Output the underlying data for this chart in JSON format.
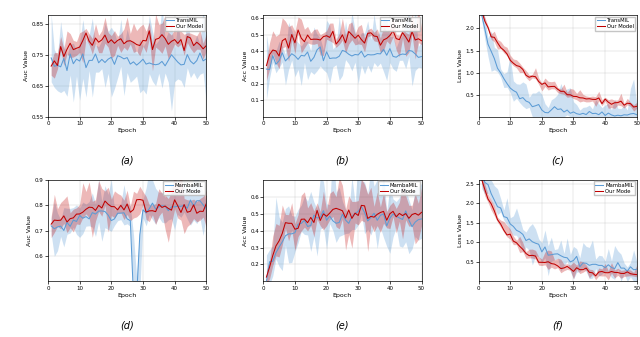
{
  "fig_width": 6.4,
  "fig_height": 3.37,
  "dpi": 100,
  "n_epochs": 50,
  "blue_color": "#5b9bd5",
  "red_color": "#c00000",
  "blue_fill_alpha": 0.3,
  "red_fill_alpha": 0.28,
  "blue_label_top": "TransMIL",
  "red_label_top": "Our Model",
  "blue_label_bot": "MambaMIL",
  "red_label_bot": "Our Mode",
  "subplot_labels": [
    "(a)",
    "(b)",
    "(c)",
    "(d)",
    "(e)",
    "(f)"
  ],
  "ylabels": [
    "Auc Value",
    "Acc Value",
    "Loss Value",
    "Auc Value",
    "Acc Value",
    "Loss Value"
  ],
  "plots": {
    "a": {
      "ylim": [
        0.55,
        0.88
      ],
      "yticks": [
        0.55,
        0.65,
        0.75,
        0.85
      ]
    },
    "b": {
      "ylim": [
        0.0,
        0.62
      ],
      "yticks": [
        0.1,
        0.2,
        0.3,
        0.4,
        0.5,
        0.6
      ]
    },
    "c": {
      "ylim": [
        0.0,
        2.3
      ],
      "yticks": [
        0.5,
        1.0,
        1.5,
        2.0
      ]
    },
    "d": {
      "ylim": [
        0.5,
        0.9
      ],
      "yticks": [
        0.6,
        0.7,
        0.8,
        0.9
      ]
    },
    "e": {
      "ylim": [
        0.1,
        0.7
      ],
      "yticks": [
        0.2,
        0.3,
        0.4,
        0.5,
        0.6
      ]
    },
    "f": {
      "ylim": [
        0.0,
        2.6
      ],
      "yticks": [
        0.5,
        1.0,
        1.5,
        2.0,
        2.5
      ]
    }
  }
}
